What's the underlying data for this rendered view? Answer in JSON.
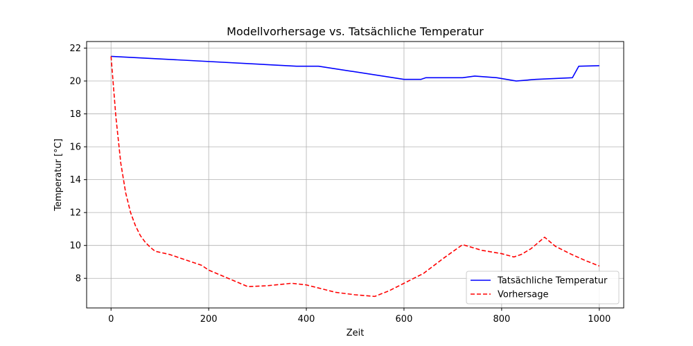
{
  "chart_data": {
    "type": "line",
    "title": "Modellvorhersage vs. Tatsächliche Temperatur",
    "xlabel": "Zeit",
    "ylabel": "Temperatur [°C]",
    "xlim": [
      -50,
      1050
    ],
    "ylim": [
      6.2,
      22.4
    ],
    "xticks": [
      0,
      200,
      400,
      600,
      800,
      1000
    ],
    "yticks": [
      8,
      10,
      12,
      14,
      16,
      18,
      20,
      22
    ],
    "grid": true,
    "legend_position": "lower-right",
    "series": [
      {
        "name": "Tatsächliche Temperatur",
        "color": "#0000ff",
        "style": "solid",
        "x": [
          0,
          380,
          425,
          600,
          635,
          645,
          720,
          745,
          790,
          830,
          870,
          945,
          958,
          1000
        ],
        "y": [
          21.5,
          20.9,
          20.9,
          20.1,
          20.1,
          20.2,
          20.2,
          20.3,
          20.2,
          20.0,
          20.1,
          20.2,
          20.9,
          20.93
        ]
      },
      {
        "name": "Vorhersage",
        "color": "#ff0000",
        "style": "dashed",
        "x": [
          0,
          10,
          20,
          30,
          40,
          50,
          60,
          70,
          80,
          90,
          120,
          150,
          185,
          200,
          240,
          280,
          320,
          370,
          400,
          460,
          500,
          540,
          570,
          600,
          640,
          680,
          720,
          760,
          800,
          825,
          840,
          860,
          888,
          910,
          940,
          970,
          1000
        ],
        "y": [
          21.5,
          17.8,
          15.0,
          13.2,
          12.0,
          11.2,
          10.6,
          10.2,
          9.9,
          9.65,
          9.45,
          9.15,
          8.8,
          8.5,
          8.0,
          7.5,
          7.55,
          7.7,
          7.6,
          7.15,
          7.0,
          6.9,
          7.25,
          7.7,
          8.3,
          9.2,
          10.05,
          9.7,
          9.5,
          9.3,
          9.45,
          9.8,
          10.5,
          9.95,
          9.5,
          9.1,
          8.75
        ]
      }
    ]
  }
}
